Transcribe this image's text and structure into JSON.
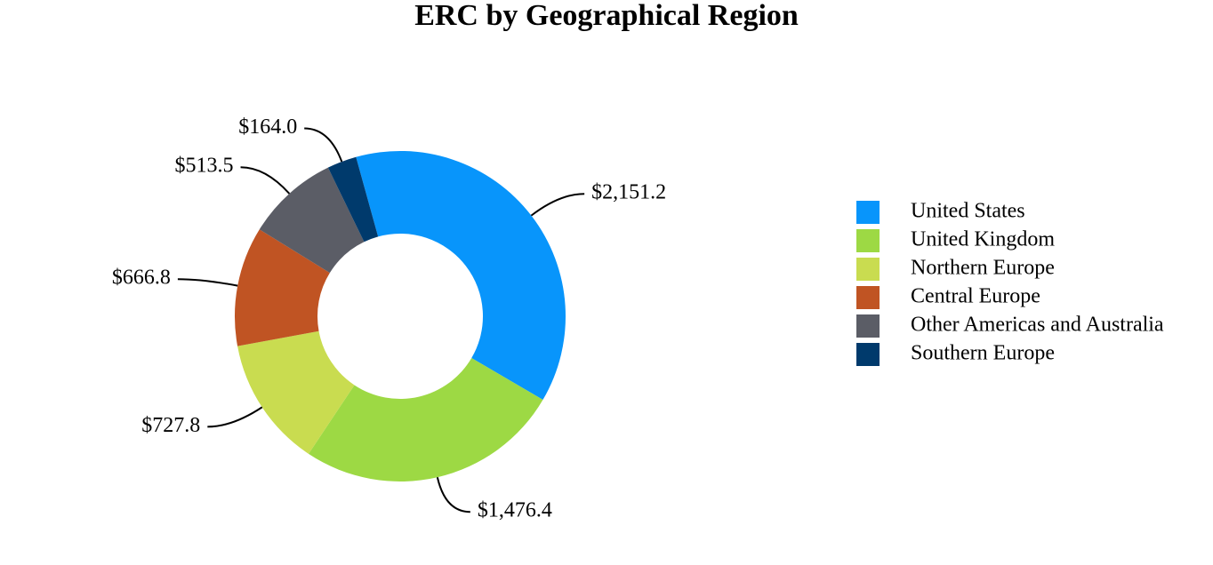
{
  "chart_data": {
    "type": "donut",
    "title": "ERC by Geographical Region",
    "categories": [
      "United States",
      "United Kingdom",
      "Northern Europe",
      "Central Europe",
      "Other Americas and Australia",
      "Southern Europe"
    ],
    "values": [
      2151.2,
      1476.4,
      727.8,
      666.8,
      513.5,
      164.0
    ],
    "value_labels": [
      "$2,151.2",
      "$1,476.4",
      "$727.8",
      "$666.8",
      "$513.5",
      "$164.0"
    ],
    "colors": [
      "#0895fb",
      "#9dd944",
      "#c9dc50",
      "#c05423",
      "#5b5d66",
      "#003a6c"
    ],
    "legend": "right"
  }
}
